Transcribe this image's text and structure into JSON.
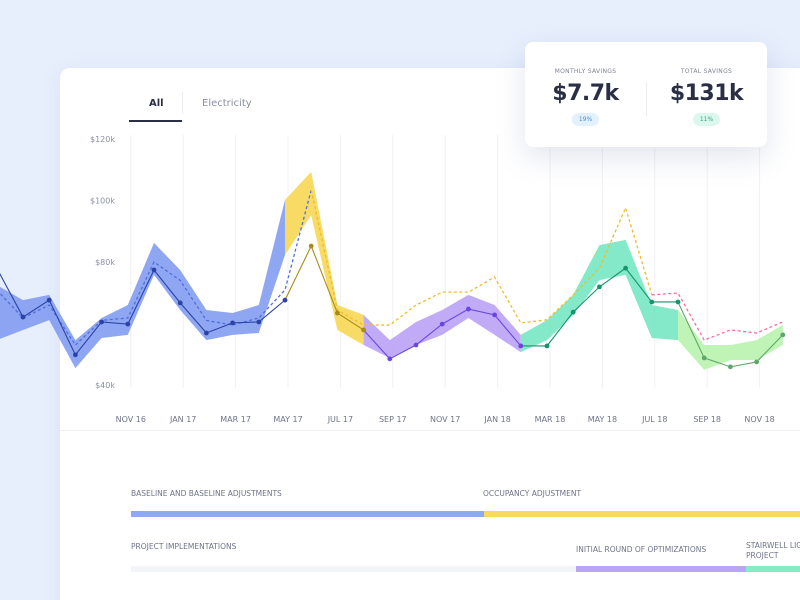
{
  "tabs": [
    "All",
    "Electricity"
  ],
  "summary": [
    {
      "label": "MONTHLY SAVINGS",
      "value": "$7.7k",
      "change": "19%"
    },
    {
      "label": "TOTAL SAVINGS",
      "value": "$131k",
      "change": "11%"
    }
  ],
  "chart_data": {
    "type": "line",
    "categories": [
      null,
      null,
      null,
      null,
      null,
      "NOV 16",
      null,
      "JAN 17",
      null,
      "MAR 17",
      null,
      "MAY 17",
      null,
      "JUL 17",
      null,
      "SEP 17",
      null,
      "NOV 17",
      null,
      "JAN 18",
      null,
      "MAR 18",
      null,
      "MAY 18",
      null,
      "JUL 18",
      null,
      "SEP 18",
      null,
      "NOV 18",
      null
    ],
    "ylim": [
      40,
      120
    ],
    "yticks": [
      {
        "value": 40,
        "label": "$40k"
      },
      {
        "value": 80,
        "label": "$80k"
      },
      {
        "value": 100,
        "label": "$100k"
      },
      {
        "value": 120,
        "label": "$120k"
      }
    ],
    "series": [
      {
        "style": "solid",
        "values": [
          78.0,
          62.1,
          67.6,
          49.8,
          60.5,
          59.8,
          77.4,
          66.7,
          56.9,
          60.2,
          60.5,
          67.6,
          85.2,
          63.4,
          57.9,
          48.5,
          53.0,
          59.8,
          64.7,
          62.8,
          52.7,
          52.7,
          63.7,
          71.9,
          78.0,
          67.0,
          67.0,
          48.8,
          45.9,
          47.5,
          56.3
        ]
      },
      {
        "style": "dashed",
        "values": [
          70.9,
          61.8,
          66.0,
          53.0,
          61.0,
          61.8,
          80.0,
          74.0,
          61.0,
          59.5,
          61.8,
          70.9,
          103.4,
          64.4,
          59.5,
          59.5,
          66.0,
          70.2,
          70.2,
          75.1,
          60.2,
          61.2,
          69.3,
          78.0,
          97.6,
          69.3,
          69.9,
          54.6,
          57.9,
          56.9,
          60.5
        ]
      }
    ],
    "band": {
      "low": [
        54.6,
        57.9,
        61.1,
        45.5,
        55.3,
        56.3,
        75.8,
        64.4,
        54.6,
        56.3,
        56.9,
        82.3,
        95.3,
        57.9,
        53.0,
        48.8,
        53.0,
        56.3,
        61.8,
        56.3,
        50.7,
        54.6,
        62.8,
        74.1,
        75.8,
        55.3,
        54.6,
        44.9,
        48.1,
        48.1,
        53.0
      ],
      "high": [
        72.5,
        67.6,
        69.3,
        54.6,
        61.8,
        66.0,
        86.2,
        77.4,
        64.4,
        63.4,
        66.0,
        100.2,
        109.3,
        66.0,
        62.8,
        54.6,
        60.5,
        64.4,
        69.3,
        66.0,
        56.3,
        61.1,
        69.3,
        85.5,
        87.2,
        66.0,
        64.4,
        53.0,
        53.0,
        54.6,
        59.5
      ]
    },
    "segments": [
      {
        "start": 0,
        "end": 11,
        "band_color": "#7b97f0",
        "line_color": "#2a43a6"
      },
      {
        "start": 11,
        "end": 14,
        "band_color": "#f7d54a",
        "line_color": "#a88a1c"
      },
      {
        "start": 14,
        "end": 20,
        "band_color": "#b69cf5",
        "line_color": "#6b45e0"
      },
      {
        "start": 20,
        "end": 26,
        "band_color": "#6fe5c0",
        "line_color": "#16946a"
      },
      {
        "start": 26,
        "end": 30,
        "band_color": "#b5f2aa",
        "line_color": "#5da86a"
      }
    ],
    "dash_segments": [
      {
        "start": 0,
        "end": 12,
        "color": "#4f6fdd"
      },
      {
        "start": 12,
        "end": 25,
        "color": "#efbd2a"
      },
      {
        "start": 25,
        "end": 30,
        "color": "#ee7399"
      }
    ],
    "grid": true
  },
  "timeline": [
    {
      "label": "BASELINE AND BASELINE ADJUSTMENTS",
      "color": "#8fa9f0"
    },
    {
      "label": "OCCUPANCY ADJUSTMENT",
      "color": "#f8da5c"
    },
    {
      "label": "PROJECT IMPLEMENTATIONS",
      "color": "#f3f4f7"
    },
    {
      "label": "INITIAL ROUND OF OPTIMIZATIONS",
      "color": "#b8a5f3"
    },
    {
      "label": "STAIRWELL LIGHTING PROJECT",
      "color": "#86ecc6"
    }
  ]
}
